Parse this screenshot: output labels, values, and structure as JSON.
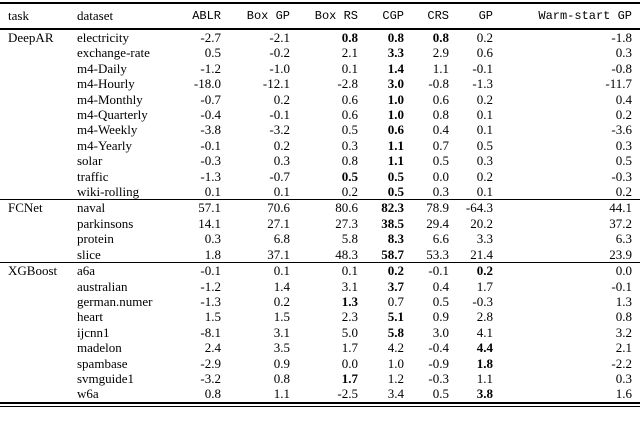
{
  "table": {
    "columns": [
      "task",
      "dataset",
      "ABLR",
      "Box GP",
      "Box RS",
      "CGP",
      "CRS",
      "GP",
      "Warm-start GP"
    ],
    "groups": [
      {
        "task": "DeepAR",
        "rows": [
          {
            "dataset": "electricity",
            "values": [
              "-2.7",
              "-2.1",
              "0.8",
              "0.8",
              "0.8",
              "0.2",
              "-1.8"
            ],
            "bold": [
              2,
              3,
              4
            ]
          },
          {
            "dataset": "exchange-rate",
            "values": [
              "0.5",
              "-0.2",
              "2.1",
              "3.3",
              "2.9",
              "0.6",
              "0.3"
            ],
            "bold": [
              3
            ]
          },
          {
            "dataset": "m4-Daily",
            "values": [
              "-1.2",
              "-1.0",
              "0.1",
              "1.4",
              "1.1",
              "-0.1",
              "-0.8"
            ],
            "bold": [
              3
            ]
          },
          {
            "dataset": "m4-Hourly",
            "values": [
              "-18.0",
              "-12.1",
              "-2.8",
              "3.0",
              "-0.8",
              "-1.3",
              "-11.7"
            ],
            "bold": [
              3
            ]
          },
          {
            "dataset": "m4-Monthly",
            "values": [
              "-0.7",
              "0.2",
              "0.6",
              "1.0",
              "0.6",
              "0.2",
              "0.4"
            ],
            "bold": [
              3
            ]
          },
          {
            "dataset": "m4-Quarterly",
            "values": [
              "-0.4",
              "-0.1",
              "0.6",
              "1.0",
              "0.8",
              "0.1",
              "0.2"
            ],
            "bold": [
              3
            ]
          },
          {
            "dataset": "m4-Weekly",
            "values": [
              "-3.8",
              "-3.2",
              "0.5",
              "0.6",
              "0.4",
              "0.1",
              "-3.6"
            ],
            "bold": [
              3
            ]
          },
          {
            "dataset": "m4-Yearly",
            "values": [
              "-0.1",
              "0.2",
              "0.3",
              "1.1",
              "0.7",
              "0.5",
              "0.3"
            ],
            "bold": [
              3
            ]
          },
          {
            "dataset": "solar",
            "values": [
              "-0.3",
              "0.3",
              "0.8",
              "1.1",
              "0.5",
              "0.3",
              "0.5"
            ],
            "bold": [
              3
            ]
          },
          {
            "dataset": "traffic",
            "values": [
              "-1.3",
              "-0.7",
              "0.5",
              "0.5",
              "0.0",
              "0.2",
              "-0.3"
            ],
            "bold": [
              2,
              3
            ]
          },
          {
            "dataset": "wiki-rolling",
            "values": [
              "0.1",
              "0.1",
              "0.2",
              "0.5",
              "0.3",
              "0.1",
              "0.2"
            ],
            "bold": [
              3
            ]
          }
        ]
      },
      {
        "task": "FCNet",
        "rows": [
          {
            "dataset": "naval",
            "values": [
              "57.1",
              "70.6",
              "80.6",
              "82.3",
              "78.9",
              "-64.3",
              "44.1"
            ],
            "bold": [
              3
            ]
          },
          {
            "dataset": "parkinsons",
            "values": [
              "14.1",
              "27.1",
              "27.3",
              "38.5",
              "29.4",
              "20.2",
              "37.2"
            ],
            "bold": [
              3
            ]
          },
          {
            "dataset": "protein",
            "values": [
              "0.3",
              "6.8",
              "5.8",
              "8.3",
              "6.6",
              "3.3",
              "6.3"
            ],
            "bold": [
              3
            ]
          },
          {
            "dataset": "slice",
            "values": [
              "1.8",
              "37.1",
              "48.3",
              "58.7",
              "53.3",
              "21.4",
              "23.9"
            ],
            "bold": [
              3
            ]
          }
        ]
      },
      {
        "task": "XGBoost",
        "rows": [
          {
            "dataset": "a6a",
            "values": [
              "-0.1",
              "0.1",
              "0.1",
              "0.2",
              "-0.1",
              "0.2",
              "0.0"
            ],
            "bold": [
              3,
              5
            ]
          },
          {
            "dataset": "australian",
            "values": [
              "-1.2",
              "1.4",
              "3.1",
              "3.7",
              "0.4",
              "1.7",
              "-0.1"
            ],
            "bold": [
              3
            ]
          },
          {
            "dataset": "german.numer",
            "values": [
              "-1.3",
              "0.2",
              "1.3",
              "0.7",
              "0.5",
              "-0.3",
              "1.3"
            ],
            "bold": [
              2
            ]
          },
          {
            "dataset": "heart",
            "values": [
              "1.5",
              "1.5",
              "2.3",
              "5.1",
              "0.9",
              "2.8",
              "0.8"
            ],
            "bold": [
              3
            ]
          },
          {
            "dataset": "ijcnn1",
            "values": [
              "-8.1",
              "3.1",
              "5.0",
              "5.8",
              "3.0",
              "4.1",
              "3.2"
            ],
            "bold": [
              3
            ]
          },
          {
            "dataset": "madelon",
            "values": [
              "2.4",
              "3.5",
              "1.7",
              "4.2",
              "-0.4",
              "4.4",
              "2.1"
            ],
            "bold": [
              5
            ]
          },
          {
            "dataset": "spambase",
            "values": [
              "-2.9",
              "0.9",
              "0.0",
              "1.0",
              "-0.9",
              "1.8",
              "-2.2"
            ],
            "bold": [
              5
            ]
          },
          {
            "dataset": "svmguide1",
            "values": [
              "-3.2",
              "0.8",
              "1.7",
              "1.2",
              "-0.3",
              "1.1",
              "0.3"
            ],
            "bold": [
              2
            ]
          },
          {
            "dataset": "w6a",
            "values": [
              "0.8",
              "1.1",
              "-2.5",
              "3.4",
              "0.5",
              "3.8",
              "1.6"
            ],
            "bold": [
              5
            ]
          }
        ]
      }
    ]
  }
}
